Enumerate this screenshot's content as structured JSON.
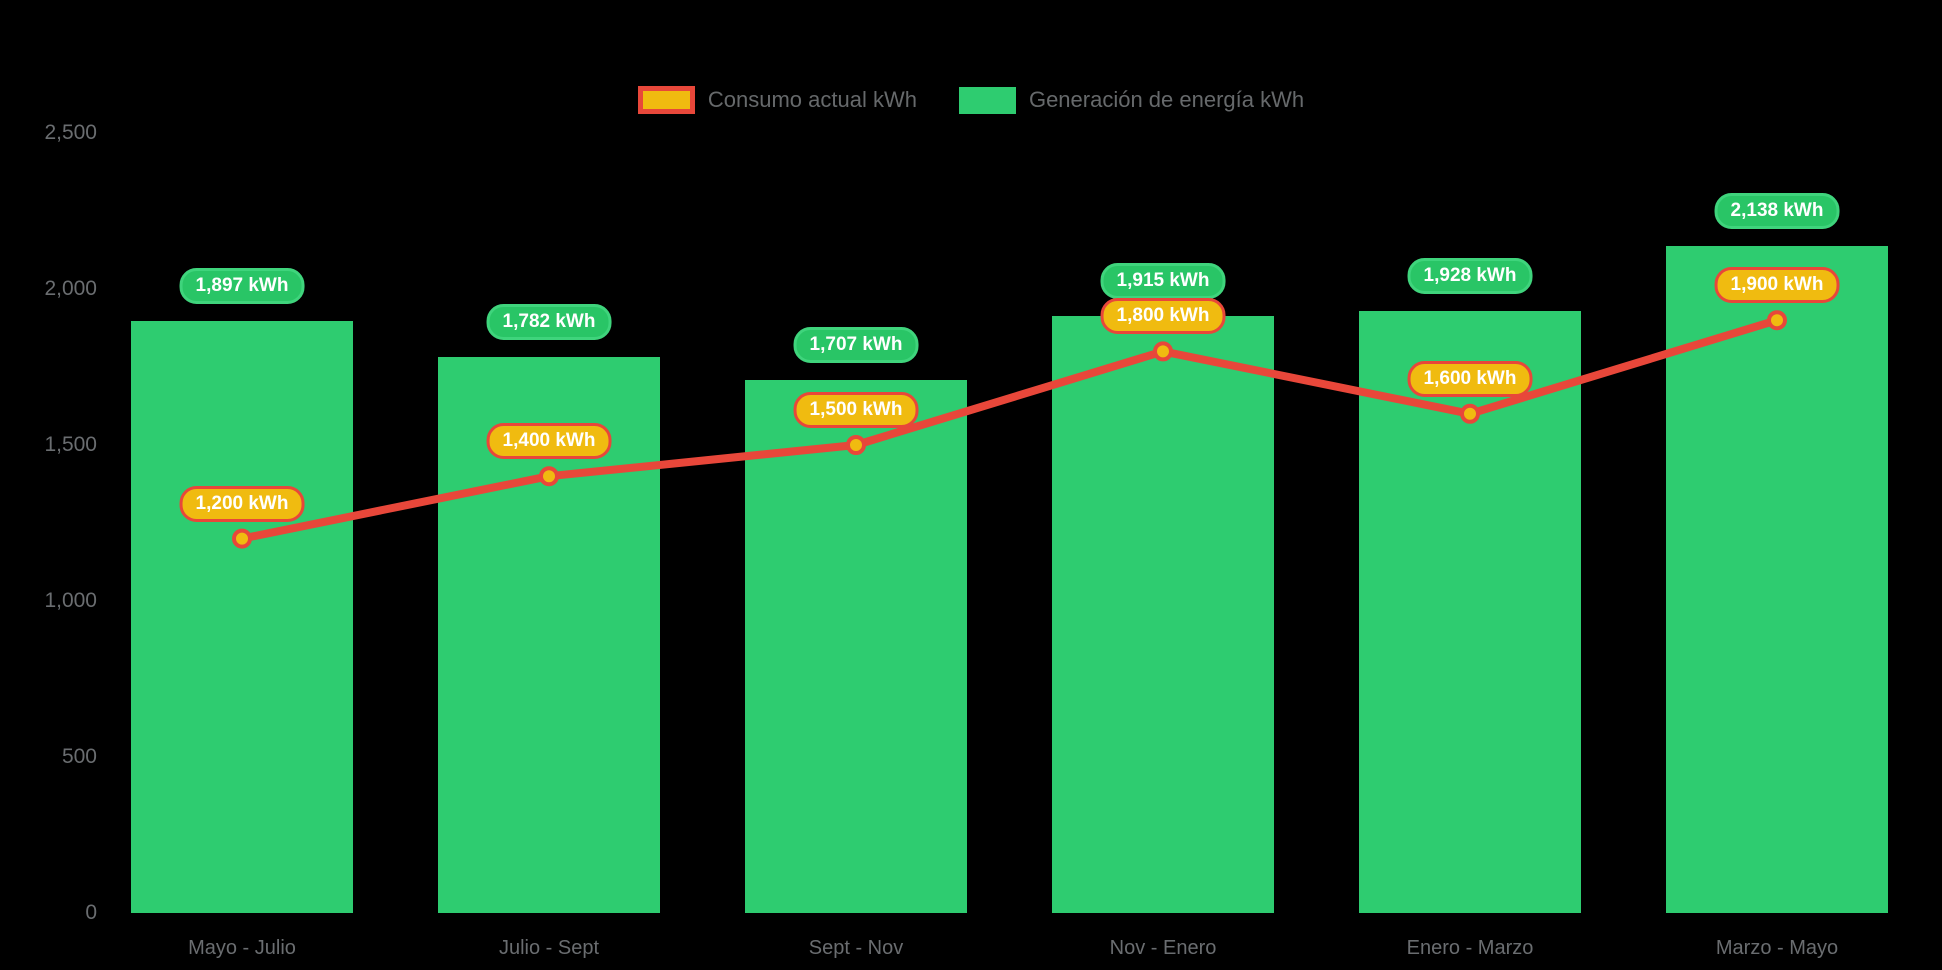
{
  "colors": {
    "background": "#000000",
    "bar_green": "#2ecc70",
    "pill_green_fill": "#29c566",
    "pill_green_border": "#3fd47c",
    "line_red": "#e8473a",
    "gold": "#f0bb10",
    "axis_text": "#6a6d70",
    "legend_text": "#66696b"
  },
  "legend": {
    "items": [
      {
        "label": "Consumo actual kWh",
        "swatch_fill": "#f0bb10",
        "swatch_border": "#e8473a"
      },
      {
        "label": "Generación de energía kWh",
        "swatch_fill": "#2ecc70",
        "swatch_border": "#2ecc70"
      }
    ]
  },
  "chart_data": {
    "type": "bar+line",
    "categories": [
      "Mayo - Julio",
      "Julio - Sept",
      "Sept - Nov",
      "Nov - Enero",
      "Enero - Marzo",
      "Marzo - Mayo"
    ],
    "series": [
      {
        "name": "Generación de energía kWh",
        "type": "bar",
        "color": "#2ecc70",
        "values": [
          1897,
          1782,
          1707,
          1915,
          1928,
          2138
        ],
        "labels": [
          "1,897 kWh",
          "1,782 kWh",
          "1,707 kWh",
          "1,915 kWh",
          "1,928 kWh",
          "2,138 kWh"
        ]
      },
      {
        "name": "Consumo actual kWh",
        "type": "line",
        "color": "#e8473a",
        "point_fill": "#f0bb10",
        "values": [
          1200,
          1400,
          1500,
          1800,
          1600,
          1900
        ],
        "labels": [
          "1,200 kWh",
          "1,400 kWh",
          "1,500 kWh",
          "1,800 kWh",
          "1,600 kWh",
          "1,900 kWh"
        ]
      }
    ],
    "y_ticks": [
      0,
      500,
      1000,
      1500,
      2000,
      2500
    ],
    "y_tick_labels": [
      "0",
      "500",
      "1,000",
      "1,500",
      "2,000",
      "2,500"
    ],
    "ylim": [
      0,
      2500
    ],
    "grid": false,
    "legend_position": "top-center",
    "title": "",
    "xlabel": "",
    "ylabel": ""
  }
}
